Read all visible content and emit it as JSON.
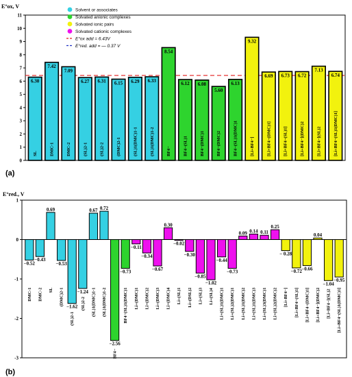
{
  "colors": {
    "solvent": "#35d0e3",
    "anionic": "#2ed42e",
    "ionic_pair": "#f2f20e",
    "cationic": "#ee10ee",
    "ox_line": "#e21b1b",
    "red_line": "#1b2fc4"
  },
  "chart_data": [
    {
      "type": "bar",
      "panel_label": "(a)",
      "ylabel": "E°ox, V",
      "ylim": [
        0,
        11
      ],
      "yticks": [
        "0",
        "1",
        "2",
        "3",
        "4",
        "5",
        "6",
        "7",
        "8",
        "9",
        "10",
        "11"
      ],
      "legend": {
        "placement": "top-left",
        "items": [
          {
            "label": "Solvent or associates",
            "color_key": "solvent"
          },
          {
            "label": "Solvated anionic complexes",
            "color_key": "anionic"
          },
          {
            "label": "Solvated ionic pairs",
            "color_key": "ionic_pair"
          },
          {
            "label": "Solvated cationic complexes",
            "color_key": "cationic"
          }
        ],
        "lines": [
          {
            "label": "E°ox add = 6.43V",
            "value": 6.43,
            "color_key": "ox_line"
          },
          {
            "label": "E°red. add = — 0.37 V",
            "color_key": "red_line"
          }
        ]
      },
      "categories": [
        "SL",
        "DMC-1",
        "DMC-2",
        "(SL)2-1",
        "(SL)2-2",
        "(DMC)2-1",
        "(SL)1(DMC)1-1",
        "(SL)1(DMC)1-2",
        "BF4−",
        "BF4−(SL)1",
        "BF4−(DMC)1",
        "BF4−(DMC)2",
        "BF4−(SL)1(DMC)1",
        "[Li+BF4−]",
        "[Li+BF4−(DMC)1]",
        "[Li+BF4−(SL)1]",
        "[Li+BF4−](DMC)2",
        "[Li+BF4−](SL)2",
        "[Li+BF4−(SL)1(DMC)1]"
      ],
      "values": [
        6.3,
        7.42,
        7.09,
        6.27,
        6.31,
        6.15,
        6.29,
        6.33,
        8.54,
        6.12,
        6.08,
        5.6,
        6.13,
        9.32,
        6.69,
        6.73,
        6.72,
        7.13,
        6.74
      ],
      "value_labels": [
        "6.30",
        "7.42",
        "7.09",
        "6.27",
        "6.31",
        "6.15",
        "6.29",
        "6.33",
        "8.54",
        "6.12",
        "6.08",
        "5.60",
        "6.13",
        "9.32",
        "6.69",
        "6.73",
        "6.72",
        "7.13",
        "6.74"
      ],
      "groups": [
        "solvent",
        "solvent",
        "solvent",
        "solvent",
        "solvent",
        "solvent",
        "solvent",
        "solvent",
        "anionic",
        "anionic",
        "anionic",
        "anionic",
        "anionic",
        "ionic_pair",
        "ionic_pair",
        "ionic_pair",
        "ionic_pair",
        "ionic_pair",
        "ionic_pair"
      ]
    },
    {
      "type": "bar",
      "panel_label": "(b)",
      "ylabel": "E°red., V",
      "ylim": [
        -3,
        1
      ],
      "yticks": [
        "-3",
        "-2",
        "-1",
        "0",
        "1"
      ],
      "categories": [
        "DMC-1",
        "DMC-2",
        "SL",
        "(DMC)2-1",
        "(SL)2-1",
        "(SL)2-2",
        "(SL)1(DMC)1-1",
        "(SL)1(DMC)1-2",
        "BF4−",
        "BF4−(SL)1(DMC)1",
        "Li+(DMC)1",
        "Li+(DMC)2",
        "Li+(DMC)3",
        "Li+(DMC)4",
        "Li+(SL)1",
        "Li+(DSL)2",
        "Li+(SL)3",
        "Li+(SL)4",
        "Li+(SL)1(DMC)1",
        "Li+(SL)2(DMC)1",
        "Li+(SL)1(DMC)2",
        "Li+(SL)1(DMC)3",
        "Li+(SL)3(DMC)1",
        "Li+(SL)2(DMC)2",
        "[Li+BF4−]",
        "[Li+BF4−(SL)1]",
        "[Li+BF4−(DMC)1]",
        "[Li+BF4−](DMC)2",
        "[Li+BF4−](SL)2",
        "[Li+BF4−(SL)1(DMC)1]"
      ],
      "values": [
        -0.52,
        -0.43,
        0.69,
        -0.53,
        -1.62,
        -1.24,
        0.67,
        0.72,
        -2.56,
        -0.73,
        -0.11,
        -0.34,
        -0.67,
        0.3,
        -0.02,
        -0.3,
        -0.85,
        -1.02,
        -0.44,
        -0.73,
        0.09,
        0.14,
        0.11,
        0.25,
        -0.28,
        -0.72,
        -0.66,
        0.04,
        -1.04,
        -0.95
      ],
      "value_labels": [
        "−0.52",
        "−0.43",
        "0.69",
        "−0.53",
        "−1.62",
        "−1.24",
        "0.67",
        "0.72",
        "−2.56",
        "−0.73",
        "−0.11",
        "−0.34",
        "−0.67",
        "0.30",
        "−0.02",
        "−0.30",
        "−0.85",
        "−1.02",
        "−0.44",
        "−0.73",
        "0.09",
        "0.14",
        "0.11",
        "0.25",
        "− 0.28",
        "−0.72",
        "−0.66",
        "0.04",
        "−1.04",
        "−0.95"
      ],
      "groups": [
        "solvent",
        "solvent",
        "solvent",
        "solvent",
        "solvent",
        "solvent",
        "solvent",
        "solvent",
        "anionic",
        "anionic",
        "cationic",
        "cationic",
        "cationic",
        "cationic",
        "cationic",
        "cationic",
        "cationic",
        "cationic",
        "cationic",
        "cationic",
        "cationic",
        "cationic",
        "cationic",
        "cationic",
        "ionic_pair",
        "ionic_pair",
        "ionic_pair",
        "ionic_pair",
        "ionic_pair",
        "ionic_pair"
      ]
    }
  ]
}
